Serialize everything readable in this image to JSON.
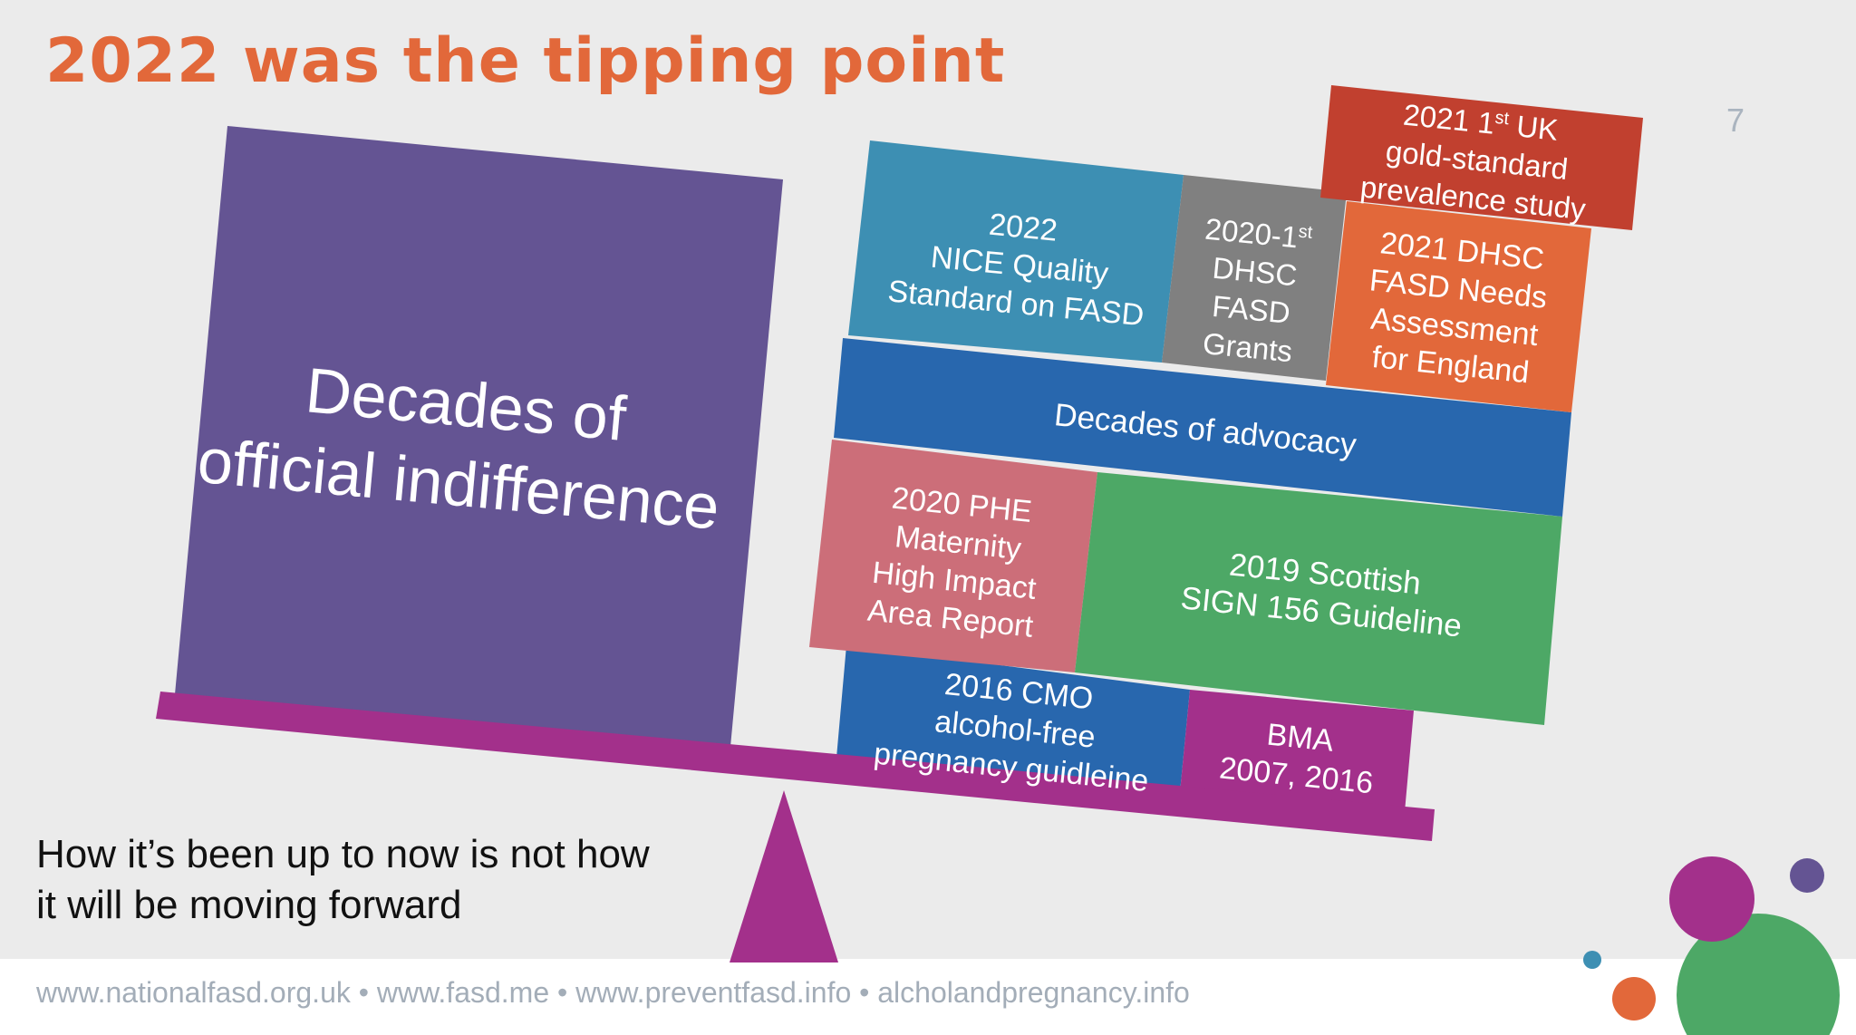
{
  "slide": {
    "title": "2022 was the tipping point",
    "page_number": "7",
    "caption_line1": "How it’s been up to now is not how",
    "caption_line2": "it will be moving forward",
    "footer_links": "www.nationalfasd.org.uk • www.fasd.me • www.preventfasd.info • alcholandpregnancy.info"
  },
  "left_block": {
    "line1": "Decades of",
    "line2": "official indifference"
  },
  "right_blocks": {
    "cmo": {
      "line1": "2016 CMO",
      "line2": "alcohol-free",
      "line3": "pregnancy guidleine"
    },
    "bma": {
      "line1": "BMA",
      "line2": "2007, 2016"
    },
    "phe": {
      "line1": "2020 PHE",
      "line2": "Maternity",
      "line3": "High Impact",
      "line4": "Area Report"
    },
    "sign": {
      "line1": "2019 Scottish",
      "line2": "SIGN 156 Guideline"
    },
    "advocacy": {
      "line1": "Decades of advocacy"
    },
    "nice": {
      "line1": "2022",
      "line2": "NICE Quality",
      "line3": "Standard on FASD"
    },
    "grants": {
      "line1_prefix": "2020-1",
      "line1_sup": "st",
      "line2": "DHSC",
      "line3": "FASD",
      "line4": "Grants"
    },
    "needs": {
      "line1": "2021 DHSC",
      "line2": "FASD Needs",
      "line3": "Assessment",
      "line4": "for England"
    },
    "study": {
      "line1_prefix": "2021 1",
      "line1_sup": "st",
      "line1_suffix": " UK",
      "line2": "gold-standard",
      "line3": "prevalence study"
    }
  },
  "colors": {
    "title": "#e2683a",
    "purple_block": "#645493",
    "beam": "#a3308b",
    "teal": "#3d8fb3",
    "grey": "#808080",
    "orange": "#e2683a",
    "red": "#c1402f",
    "blue": "#2867ae",
    "pink": "#cc6e79",
    "green": "#4da866",
    "circle_purple": "#a3308b",
    "circle_violet": "#645493",
    "circle_green": "#4da866",
    "circle_orange": "#e2683a",
    "circle_teal": "#3d8fb3"
  }
}
